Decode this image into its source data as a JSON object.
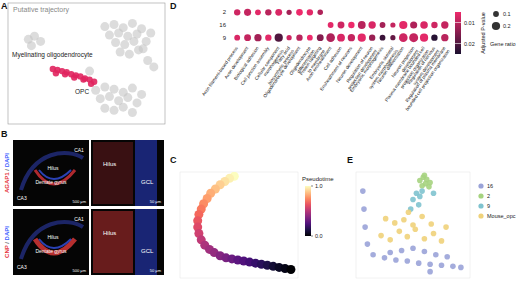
{
  "panel_labels": [
    "A",
    "B",
    "C",
    "D",
    "E"
  ],
  "images": [
    {
      "label_parts": [
        "AGAP1",
        "/",
        "DAPI"
      ],
      "overview": [
        "Dentate gyrus",
        "CA1",
        "CA3",
        "Hilus"
      ],
      "zoom": [
        "Hilus",
        "GCL"
      ],
      "scale_bars": [
        "500 μm",
        "50 μm"
      ]
    },
    {
      "label_parts": [
        "CNP",
        "/",
        "DAPI"
      ],
      "overview": [
        "Dentate gyrus",
        "CA1",
        "CA3",
        "Hilus"
      ],
      "zoom": [
        "Hilus",
        "GCL"
      ],
      "scale_bars": [
        "500 μm",
        "50 μm"
      ]
    }
  ],
  "chart_data": [
    {
      "type": "scatter",
      "title": "Putative trajectory",
      "annotations": [
        "Myelinating oligodendrocyte",
        "OPC"
      ],
      "tick_labels": false,
      "xlim": [
        0,
        10
      ],
      "ylim": [
        0,
        10
      ],
      "series": [
        {
          "color": "#c4c4c4",
          "x": [
            6.2,
            6.8,
            7.4,
            8.0,
            8.6,
            9.2,
            6.5,
            7.1,
            7.7,
            8.3,
            8.9,
            6.9,
            7.5,
            8.1,
            8.7,
            7.2,
            7.8,
            8.4,
            5.6,
            6.2,
            6.8,
            7.4,
            8.0,
            8.6,
            5.9,
            6.5,
            7.1,
            7.7,
            8.3,
            6.2,
            6.8,
            7.4,
            8.0,
            1.2,
            1.6,
            2.0,
            1.4,
            9.0,
            9.4,
            5.2
          ],
          "y": [
            9.0,
            9.2,
            8.9,
            9.3,
            8.8,
            8.4,
            8.2,
            8.4,
            8.1,
            8.3,
            7.6,
            7.5,
            7.3,
            7.6,
            6.9,
            6.6,
            6.4,
            6.8,
            3.0,
            3.3,
            3.1,
            2.8,
            3.2,
            2.6,
            2.2,
            2.4,
            2.0,
            2.3,
            1.8,
            1.3,
            1.1,
            1.4,
            0.9,
            7.8,
            8.1,
            7.6,
            7.2,
            5.8,
            5.2,
            4.8
          ]
        },
        {
          "color": "#e0245e",
          "x": [
            2.8,
            3.1,
            3.4,
            3.7,
            4.0,
            4.3,
            4.6,
            4.9,
            5.2,
            5.5,
            3.0,
            3.6,
            4.2,
            4.8,
            5.3
          ],
          "y": [
            5.0,
            4.9,
            4.8,
            4.7,
            4.5,
            4.4,
            4.3,
            4.1,
            4.0,
            3.8,
            4.6,
            4.5,
            4.2,
            4.0,
            3.6
          ]
        }
      ]
    },
    {
      "type": "dot",
      "categories": [
        "Actin filament-based process",
        "Axon development",
        "Biological adhesion",
        "Cell junction assembly",
        "Cellular component morphogenesis",
        "Fatty acid biosynthetic process",
        "Oligodendrocyte development",
        "Oligodendrocyte differentiation",
        "Protein targeting to membrane",
        "Axon ensheathment",
        "Cell adhesion",
        "Ensheathment of neurons",
        "Neuron development",
        "Regulation of neuron projection development",
        "Embryonic morphogenesis",
        "Embryonic skeletal system morphogenesis",
        "Neuron differentiation",
        "Neuron projection development",
        "Plasma membrane bounded cell projection organization",
        "Regulation of nervous system development",
        "Regulation of plasma membrane bounded cell projection organization"
      ],
      "rows": [
        "2",
        "16",
        "9"
      ],
      "p_values": [
        [
          0.008,
          0.009,
          0.006,
          0.01,
          0.007,
          0.012,
          0.005,
          0.006,
          0.011,
          null,
          null,
          null,
          null,
          null,
          null,
          null,
          null,
          null,
          null,
          null,
          null
        ],
        [
          null,
          null,
          null,
          null,
          null,
          null,
          null,
          null,
          null,
          0.006,
          0.008,
          0.005,
          0.01,
          0.007,
          0.012,
          0.009,
          0.006,
          0.011,
          0.007,
          0.008,
          0.009
        ],
        [
          0.007,
          0.009,
          0.012,
          0.006,
          0.02,
          0.008,
          0.01,
          0.005,
          0.015,
          0.011,
          0.007,
          0.009,
          0.006,
          0.013,
          0.022,
          0.018,
          0.008,
          0.009,
          0.006,
          0.024,
          0.01
        ]
      ],
      "gene_ratio": [
        [
          0.12,
          0.15,
          0.1,
          0.12,
          0.14,
          0.08,
          0.13,
          0.12,
          0.09,
          null,
          null,
          null,
          null,
          null,
          null,
          null,
          null,
          null,
          null,
          null,
          null
        ],
        [
          null,
          null,
          null,
          null,
          null,
          null,
          null,
          null,
          null,
          0.1,
          0.14,
          0.12,
          0.18,
          0.16,
          0.1,
          0.08,
          0.2,
          0.15,
          0.17,
          0.12,
          0.16
        ],
        [
          0.1,
          0.14,
          0.16,
          0.12,
          0.2,
          0.08,
          0.12,
          0.1,
          0.14,
          0.22,
          0.18,
          0.16,
          0.2,
          0.12,
          0.1,
          0.08,
          0.22,
          0.24,
          0.2,
          0.12,
          0.16
        ]
      ],
      "color_title": "Adjusted P-value",
      "color_range": [
        0.005,
        0.025
      ],
      "color_ticks": [
        0.01,
        0.02
      ],
      "size_title": "Gene ratio",
      "size_lim": [
        0,
        0.25
      ],
      "size_ticks": [
        0.1,
        0.2
      ]
    },
    {
      "type": "scatter",
      "tick_labels": false,
      "xlim": [
        0,
        10
      ],
      "ylim": [
        0,
        10
      ],
      "colorbar_title": "Pseudotime",
      "color_range": [
        0,
        1
      ],
      "color_ticks": [
        {
          "value": 1,
          "label": "1.0"
        },
        {
          "value": 0,
          "label": "0.0"
        }
      ],
      "series": [
        {
          "x": [
            4.6,
            4.2,
            3.8,
            3.4,
            3.0,
            2.6,
            2.3,
            2.0,
            1.8,
            1.6,
            1.5,
            1.5,
            1.6,
            1.8,
            2.1,
            2.5,
            2.9,
            3.4,
            3.9,
            4.4,
            4.9,
            5.4,
            5.9,
            6.4,
            6.9,
            7.4,
            7.9,
            8.4,
            8.9,
            9.4
          ],
          "y": [
            9.6,
            9.4,
            9.1,
            8.8,
            8.4,
            8.0,
            7.5,
            7.0,
            6.5,
            6.0,
            5.4,
            4.8,
            4.2,
            3.6,
            3.1,
            2.7,
            2.4,
            2.1,
            1.9,
            1.8,
            1.7,
            1.6,
            1.5,
            1.4,
            1.3,
            1.2,
            1.1,
            1.0,
            0.9,
            0.8
          ],
          "color_values": [
            1.0,
            0.97,
            0.94,
            0.9,
            0.87,
            0.83,
            0.8,
            0.76,
            0.72,
            0.68,
            0.64,
            0.6,
            0.56,
            0.52,
            0.48,
            0.45,
            0.42,
            0.38,
            0.35,
            0.32,
            0.28,
            0.25,
            0.22,
            0.19,
            0.16,
            0.13,
            0.1,
            0.07,
            0.04,
            0.0
          ]
        }
      ]
    },
    {
      "type": "scatter",
      "tick_labels": false,
      "legend": "right",
      "xlim": [
        0,
        10
      ],
      "ylim": [
        0,
        10
      ],
      "series": [
        {
          "name": "16",
          "color": "#9aa3d8",
          "x": [
            0.6,
            0.7,
            0.8,
            1.0,
            1.5,
            2.5,
            3.5,
            4.5,
            5.5,
            6.5,
            7.5,
            8.5,
            9.2,
            4.0,
            5.0,
            6.0,
            7.0,
            8.0,
            3.0,
            6.5
          ],
          "y": [
            8.2,
            6.5,
            4.8,
            3.2,
            2.2,
            1.9,
            1.7,
            1.6,
            1.4,
            1.3,
            1.2,
            1.1,
            1.0,
            2.6,
            2.8,
            2.5,
            2.2,
            2.0,
            2.4,
            0.6
          ]
        },
        {
          "name": "2",
          "color": "#a6d37f",
          "x": [
            5.6,
            5.9,
            6.2,
            6.5,
            5.8,
            6.1,
            6.4,
            6.0
          ],
          "y": [
            9.2,
            9.5,
            9.3,
            9.0,
            8.7,
            8.9,
            8.6,
            9.7
          ]
        },
        {
          "name": "9",
          "color": "#7fc3cf",
          "x": [
            5.3,
            5.6,
            5.0,
            5.8,
            6.8,
            4.8,
            5.5
          ],
          "y": [
            8.0,
            7.7,
            7.4,
            8.2,
            8.0,
            6.5,
            6.9
          ]
        },
        {
          "name": "Mouse_opc",
          "color": "#efd27a",
          "x": [
            2.2,
            3.0,
            3.8,
            4.5,
            5.2,
            6.0,
            6.8,
            7.5,
            3.4,
            4.2,
            5.0,
            5.8,
            6.6,
            2.6,
            7.9,
            4.6
          ],
          "y": [
            4.0,
            3.6,
            4.4,
            3.9,
            4.6,
            3.7,
            4.2,
            3.5,
            5.2,
            5.5,
            5.0,
            5.8,
            5.1,
            5.6,
            4.8,
            6.2
          ]
        }
      ]
    }
  ]
}
